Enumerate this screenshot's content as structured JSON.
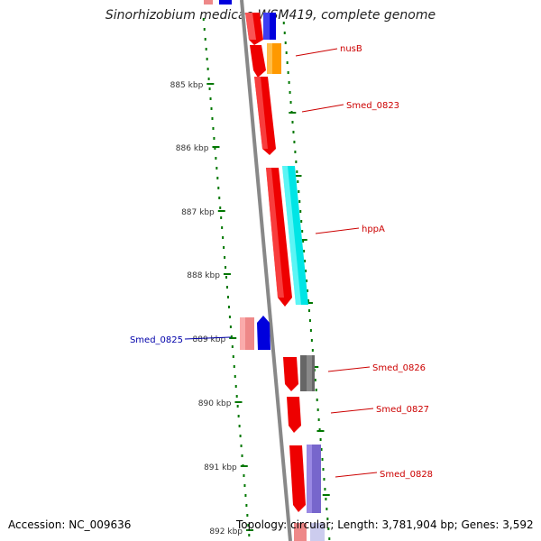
{
  "title": "Sinorhizobium medicae WSM419, complete genome",
  "footer": {
    "accession": "Accession: NC_009636",
    "summary": "Topology: circular; Length: 3,781,904 bp; Genes: 3,592"
  },
  "ticks": [
    {
      "label": "885 kbp"
    },
    {
      "label": "886 kbp"
    },
    {
      "label": "887 kbp"
    },
    {
      "label": "888 kbp"
    },
    {
      "label": "889 kbp"
    },
    {
      "label": "890 kbp"
    },
    {
      "label": "891 kbp"
    },
    {
      "label": "892 kbp"
    }
  ],
  "gene_labels": [
    {
      "name": "nusB",
      "color": "#cc0000"
    },
    {
      "name": "Smed_0823",
      "color": "#cc0000"
    },
    {
      "name": "hppA",
      "color": "#cc0000"
    },
    {
      "name": "Smed_0825",
      "color": "#0000aa"
    },
    {
      "name": "Smed_0826",
      "color": "#cc0000"
    },
    {
      "name": "Smed_0827",
      "color": "#cc0000"
    },
    {
      "name": "Smed_0828",
      "color": "#cc0000"
    }
  ],
  "colors": {
    "cds": "#ee0000",
    "pseudo": "#ee8888",
    "gene_blue": "#0000dd",
    "gene_orange": "#ff9900",
    "gene_cyan": "#00e5e5",
    "gene_gray": "#666666",
    "gene_purple": "#7766cc",
    "backbone": "#888888",
    "tick": "#007700",
    "label_line": "#cc0000"
  }
}
